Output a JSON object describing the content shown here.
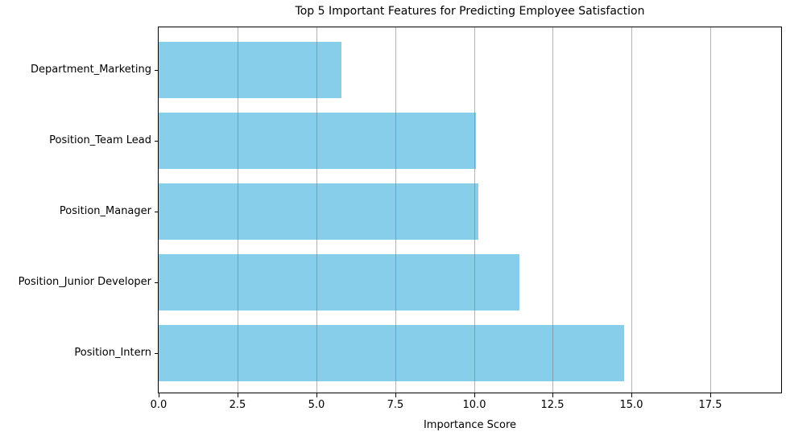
{
  "chart_data": {
    "type": "bar",
    "orientation": "horizontal",
    "title": "Top 5 Important Features for Predicting Employee Satisfaction",
    "xlabel": "Importance Score",
    "ylabel": "",
    "category_order": "top-to-bottom",
    "categories": [
      "Department_Marketing",
      "Position_Team Lead",
      "Position_Manager",
      "Position_Junior Developer",
      "Position_Intern"
    ],
    "values": [
      5.8,
      10.07,
      10.13,
      11.43,
      14.76
    ],
    "xlim": [
      0,
      19.74
    ],
    "xtick_values": [
      0,
      2.5,
      5,
      7.5,
      10,
      12.5,
      15,
      17.5
    ],
    "xtick_labels": [
      "0.0",
      "2.5",
      "5.0",
      "7.5",
      "10.0",
      "12.5",
      "15.0",
      "17.5"
    ],
    "grid": "x",
    "grid_above_bars": true,
    "legend_position": "none",
    "colors": {
      "bar": "#87CEEB",
      "grid": "rgba(118,118,118,0.55)",
      "text": "#000000",
      "spine": "#000000",
      "background": "#ffffff"
    }
  }
}
